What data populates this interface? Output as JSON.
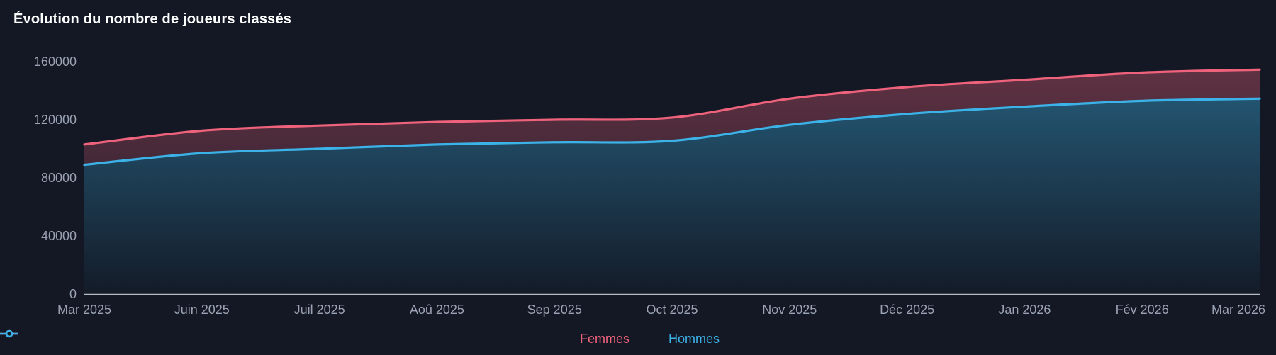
{
  "title": "Évolution du nombre de joueurs classés",
  "colors": {
    "background": "#131824",
    "femmes": "#ef627c",
    "hommes": "#3cb3e8",
    "tick_label": "#9aa2b3",
    "axis_line": "#c9cdd5",
    "title": "#ffffff"
  },
  "chart_data": {
    "type": "area",
    "title": "Évolution du nombre de joueurs classés",
    "categories": [
      "Mar 2025",
      "Juin 2025",
      "Juil 2025",
      "Aoû 2025",
      "Sep 2025",
      "Oct 2025",
      "Nov 2025",
      "Déc 2025",
      "Jan 2026",
      "Fév 2026",
      "Mar 2026"
    ],
    "series": [
      {
        "name": "Femmes",
        "color": "#ef627c",
        "values": [
          103000,
          112500,
          116000,
          118500,
          120000,
          121500,
          134500,
          142500,
          147500,
          152500,
          154500
        ]
      },
      {
        "name": "Hommes",
        "color": "#3cb3e8",
        "values": [
          89000,
          97000,
          100000,
          103000,
          104500,
          105500,
          116500,
          124000,
          129000,
          133000,
          134500
        ]
      }
    ],
    "xlabel": "",
    "ylabel": "",
    "ylim": [
      0,
      160000
    ],
    "yticks": [
      0,
      40000,
      80000,
      120000,
      160000
    ],
    "grid": false,
    "legend_position": "bottom"
  }
}
